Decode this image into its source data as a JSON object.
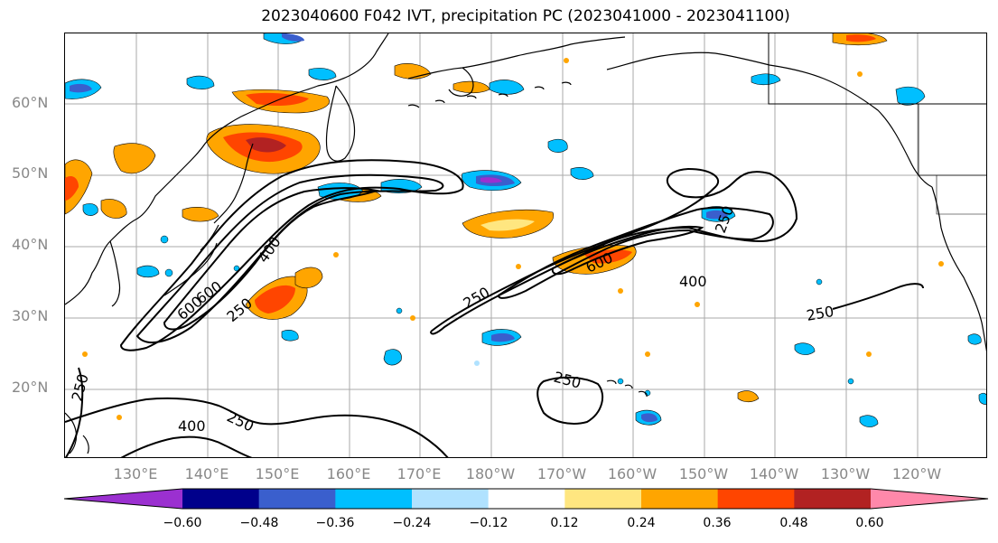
{
  "title": "2023040600 F042 IVT, precipitation PC (2023041000 - 2023041100)",
  "lat_labels": [
    "60°N",
    "50°N",
    "40°N",
    "30°N",
    "20°N"
  ],
  "lon_labels": [
    "130°E",
    "140°E",
    "150°E",
    "160°E",
    "170°E",
    "180°W",
    "170°W",
    "160°W",
    "150°W",
    "140°W",
    "130°W",
    "120°W"
  ],
  "contour_labels": [
    "400",
    "600",
    "600",
    "250",
    "250",
    "600",
    "400",
    "250",
    "250",
    "250",
    "250",
    "400",
    "250"
  ],
  "colorbar": {
    "ticks": [
      "−0.60",
      "−0.48",
      "−0.36",
      "−0.24",
      "−0.12",
      "0.12",
      "0.24",
      "0.36",
      "0.48",
      "0.60"
    ],
    "colors": [
      "#9b30d0",
      "#00008b",
      "#3a5fcd",
      "#00bfff",
      "#b0e2ff",
      "#ffffff",
      "#ffe680",
      "#ffa500",
      "#ff4500",
      "#b22222",
      "#ff88aa"
    ]
  },
  "palette": {
    "grid": "#aaaaaa",
    "coast": "#000000",
    "contour": "#000000"
  }
}
